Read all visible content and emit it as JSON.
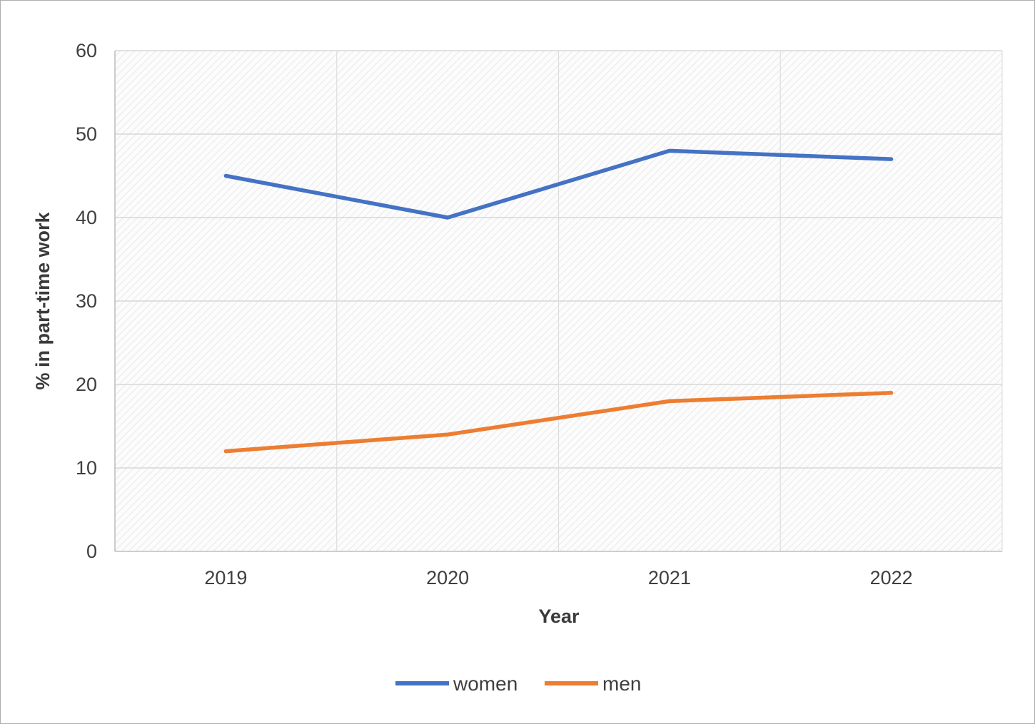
{
  "chart_data": {
    "type": "line",
    "categories": [
      "2019",
      "2020",
      "2021",
      "2022"
    ],
    "series": [
      {
        "name": "women",
        "color": "#4472C4",
        "values": [
          45,
          40,
          48,
          47
        ]
      },
      {
        "name": "men",
        "color": "#ED7D31",
        "values": [
          12,
          14,
          18,
          19
        ]
      }
    ],
    "xlabel": "Year",
    "ylabel": "% in part-time work",
    "ylim": [
      0,
      60
    ],
    "yticks": [
      0,
      10,
      20,
      30,
      40,
      50,
      60
    ],
    "grid": "horizontal-and-vertical-light",
    "plot_area_fill": "diagonal-hatch",
    "legend_position": "bottom",
    "legend": [
      "women",
      "men"
    ]
  }
}
